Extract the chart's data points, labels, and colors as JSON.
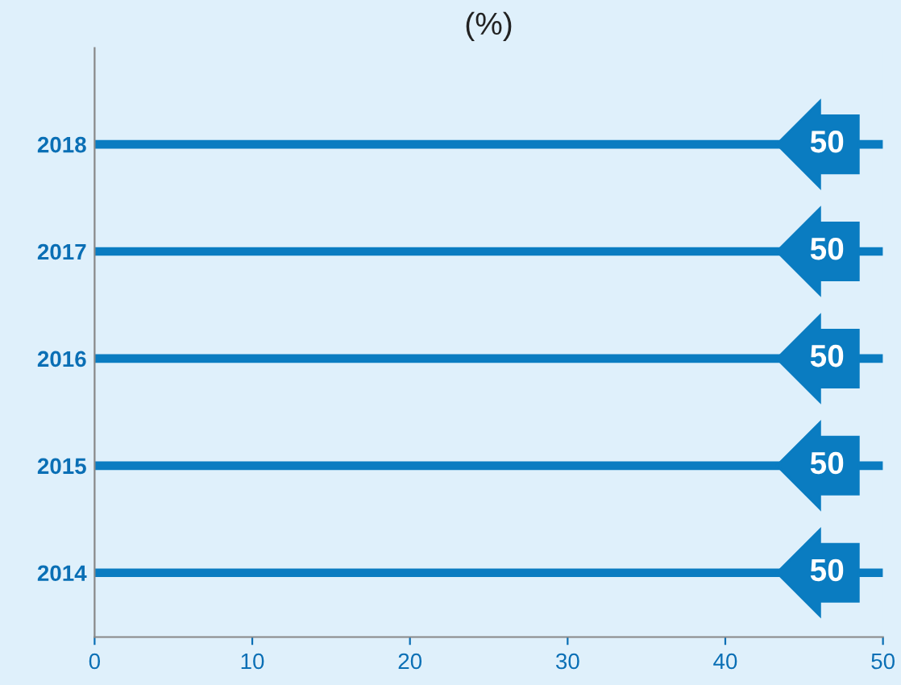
{
  "chart_data": {
    "type": "bar",
    "orientation": "horizontal",
    "title": "(%)",
    "categories": [
      "2018",
      "2017",
      "2016",
      "2015",
      "2014"
    ],
    "values": [
      50,
      50,
      50,
      50,
      50
    ],
    "color": "#0a7cc1",
    "xlim": [
      0,
      50
    ],
    "xticks": [
      0,
      10,
      20,
      30,
      40,
      50
    ],
    "data_labels": true,
    "grid": false,
    "legend": false
  }
}
